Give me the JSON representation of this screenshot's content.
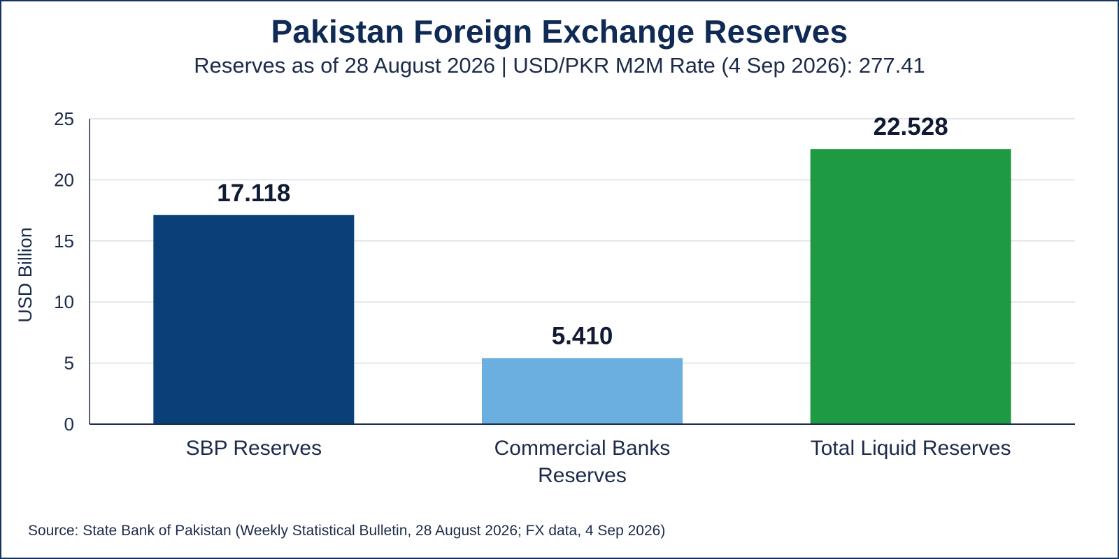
{
  "title": "Pakistan Foreign Exchange Reserves",
  "subtitle": "Reserves as of 28 August 2026 | USD/PKR M2M Rate (4 Sep 2026): 277.41",
  "source": "Source: State Bank of Pakistan (Weekly Statistical Bulletin, 28 August 2026; FX data, 4 Sep 2026)",
  "chart_data": {
    "type": "bar",
    "title": "Pakistan Foreign Exchange Reserves",
    "subtitle": "Reserves as of 28 August 2026 | USD/PKR M2M Rate (4 Sep 2026): 277.41",
    "xlabel": "",
    "ylabel": "USD Billion",
    "ylim": [
      0,
      25
    ],
    "yticks": [
      0,
      5,
      10,
      15,
      20,
      25
    ],
    "grid": true,
    "categories": [
      [
        "SBP Reserves"
      ],
      [
        "Commercial Banks",
        "Reserves"
      ],
      [
        "Total Liquid Reserves"
      ]
    ],
    "values": [
      17.118,
      5.41,
      22.528
    ],
    "value_labels": [
      "17.118",
      "5.410",
      "22.528"
    ],
    "colors": [
      "#0a4078",
      "#6aafe0",
      "#1e9a43"
    ]
  }
}
